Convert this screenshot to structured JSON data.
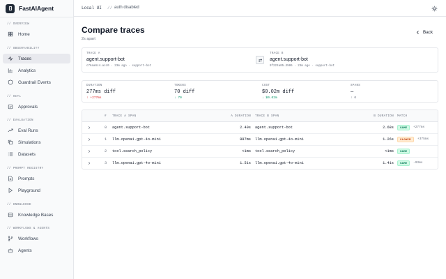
{
  "app": {
    "name": "FastAIAgent"
  },
  "topbar": {
    "env": "Local UI",
    "separator": "//",
    "auth": "auth disabled"
  },
  "sidebar": {
    "sections": [
      {
        "title": "// OVERVIEW",
        "items": [
          {
            "label": "Home",
            "icon": "home-icon"
          }
        ]
      },
      {
        "title": "// OBSERVABILITY",
        "items": [
          {
            "label": "Traces",
            "icon": "activity-icon",
            "active": true
          },
          {
            "label": "Analytics",
            "icon": "bar-chart-icon"
          },
          {
            "label": "Guardrail Events",
            "icon": "shield-icon"
          }
        ]
      },
      {
        "title": "// HITL",
        "items": [
          {
            "label": "Approvals",
            "icon": "check-square-icon"
          }
        ]
      },
      {
        "title": "// EVALUATION",
        "items": [
          {
            "label": "Eval Runs",
            "icon": "trending-up-icon"
          },
          {
            "label": "Simulations",
            "icon": "copy-icon"
          },
          {
            "label": "Datasets",
            "icon": "list-icon"
          }
        ]
      },
      {
        "title": "// PROMPT REGISTRY",
        "items": [
          {
            "label": "Prompts",
            "icon": "file-icon"
          },
          {
            "label": "Playground",
            "icon": "play-icon"
          }
        ]
      },
      {
        "title": "// KNOWLEDGE",
        "items": [
          {
            "label": "Knowledge Bases",
            "icon": "database-icon"
          }
        ]
      },
      {
        "title": "// WORKFLOWS & AGENTS",
        "items": [
          {
            "label": "Workflows",
            "icon": "git-branch-icon"
          },
          {
            "label": "Agents",
            "icon": "bot-icon"
          }
        ]
      }
    ]
  },
  "page": {
    "title": "Compare traces",
    "subtitle": "2s apart",
    "back_label": "Back"
  },
  "traces": {
    "a": {
      "label": "TRACE A",
      "name": "agent.support-bot",
      "meta": "c76aa6c4…acc0 · 23m ago · support-bot"
    },
    "b": {
      "label": "TRACE B",
      "name": "agent.support-bot",
      "meta": "9f223a05…3506 · 23m ago · support-bot"
    }
  },
  "stats": [
    {
      "label": "DURATION",
      "value": "277ms diff",
      "delta": "↑ +277ms",
      "tone": "red"
    },
    {
      "label": "TOKENS",
      "value": "70 diff",
      "delta": "↓ 70",
      "tone": "green"
    },
    {
      "label": "COST",
      "value": "$0.02m diff",
      "delta": "↓ $0.02m",
      "tone": "green"
    },
    {
      "label": "SPANS",
      "value": "—",
      "delta": "↑ 0",
      "tone": "gray"
    }
  ],
  "table": {
    "headers": {
      "num": "#",
      "a_span": "TRACE A SPAN",
      "a_dur": "A DURATION",
      "b_span": "TRACE B SPAN",
      "b_dur": "B DURATION",
      "match": "MATCH"
    },
    "rows": [
      {
        "index": "0",
        "a_span": "agent.support-bot",
        "a_dur": "2.40s",
        "b_span": "agent.support-bot",
        "b_dur": "2.68s",
        "match": "SAME",
        "match_type": "same",
        "delta": "+277ms"
      },
      {
        "index": "1",
        "a_span": "llm.openai.gpt-4o-mini",
        "a_dur": "887ms",
        "b_span": "llm.openai.gpt-4o-mini",
        "b_dur": "1.26s",
        "match": "SLOWER",
        "match_type": "slower",
        "delta": "+375ms"
      },
      {
        "index": "2",
        "a_span": "tool.search_policy",
        "a_dur": "<1ms",
        "b_span": "tool.search_policy",
        "b_dur": "<1ms",
        "match": "SAME",
        "match_type": "same",
        "delta": ""
      },
      {
        "index": "3",
        "a_span": "llm.openai.gpt-4o-mini",
        "a_dur": "1.51s",
        "b_span": "llm.openai.gpt-4o-mini",
        "b_dur": "1.41s",
        "match": "SAME",
        "match_type": "same",
        "delta": "-93ms"
      }
    ]
  }
}
